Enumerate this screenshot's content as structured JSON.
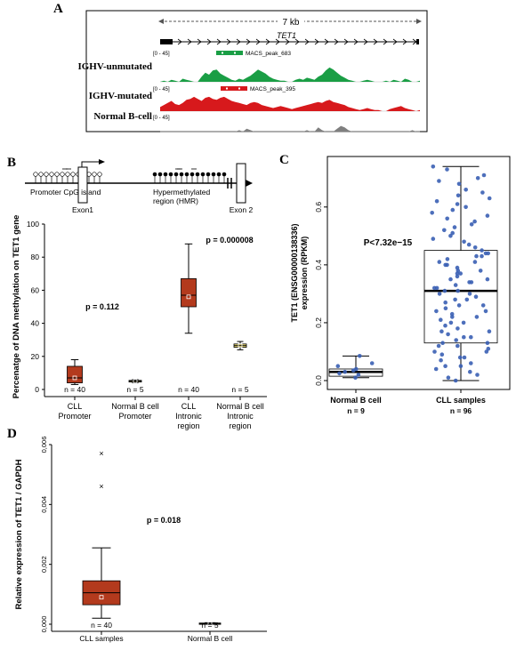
{
  "panels": {
    "a": "A",
    "b": "B",
    "c": "C",
    "d": "D"
  },
  "panel_a": {
    "scale_label": "7 kb",
    "gene_label": "TET1",
    "tracks": [
      {
        "name": "IGHV-unmutated",
        "range": "[0 - 45]",
        "peak": "MACS_peak_683",
        "color": "#1a9e45",
        "profile": [
          0,
          1,
          0,
          2,
          1,
          0,
          3,
          2,
          1,
          0,
          0,
          5,
          9,
          7,
          11,
          12,
          8,
          6,
          4,
          2,
          1,
          3,
          2,
          4,
          6,
          9,
          12,
          10,
          8,
          5,
          3,
          2,
          1,
          1,
          0,
          0,
          2,
          3,
          2,
          4,
          3,
          2,
          5,
          7,
          11,
          14,
          12,
          9,
          6,
          4,
          2,
          1,
          0,
          0,
          1,
          2,
          1,
          0,
          0,
          0,
          1,
          0,
          2,
          1,
          0,
          3,
          2,
          0,
          0,
          1
        ]
      },
      {
        "name": "IGHV-mutated",
        "range": "[0 - 45]",
        "peak": "MACS_peak_395",
        "color": "#d7191c",
        "profile": [
          4,
          6,
          8,
          10,
          7,
          6,
          8,
          11,
          12,
          14,
          12,
          10,
          13,
          14,
          12,
          11,
          13,
          14,
          12,
          10,
          9,
          8,
          7,
          6,
          8,
          9,
          8,
          6,
          5,
          4,
          3,
          4,
          5,
          4,
          3,
          2,
          3,
          4,
          5,
          6,
          7,
          8,
          9,
          8,
          10,
          11,
          9,
          8,
          7,
          6,
          4,
          3,
          2,
          1,
          2,
          3,
          2,
          1,
          1,
          0,
          0,
          2,
          3,
          4,
          5,
          3,
          2,
          1,
          0,
          1
        ]
      },
      {
        "name": "Normal B-cell",
        "range": "[0 - 45]",
        "peak": "",
        "color": "#7f7f7f",
        "profile": [
          0,
          0,
          0,
          0,
          0,
          0,
          0,
          0,
          0,
          0,
          0,
          0,
          0,
          0,
          0,
          0,
          0,
          0,
          0,
          0,
          0,
          1,
          0,
          2,
          1,
          0,
          0,
          0,
          0,
          0,
          0,
          0,
          0,
          0,
          0,
          0,
          0,
          0,
          0,
          1,
          0,
          0,
          3,
          1,
          0,
          0,
          0,
          2,
          4,
          3,
          1,
          0,
          0,
          0,
          0,
          0,
          0,
          0,
          0,
          0,
          0,
          0,
          0,
          0,
          0,
          0,
          0,
          1,
          0,
          0
        ]
      }
    ]
  },
  "panel_b": {
    "schematic": {
      "promoter": "Promoter CpG island",
      "hmr_line1": "Hypermethylated",
      "hmr_line2": "region (HMR)",
      "exon1": "Exon1",
      "exon2": "Exon 2"
    },
    "p_promoter": "p = 0.112",
    "p_intronic": "p = 0.000008"
  },
  "panel_c": {
    "p_label": "P<7.32e−15"
  },
  "chart_data": [
    {
      "type": "box",
      "panel": "B",
      "ylabel": "Percenatge of DNA methylation on TET1 gene",
      "ylim": [
        0,
        100
      ],
      "yticks": [
        "0",
        "20",
        "40",
        "60",
        "80",
        "100"
      ],
      "groups": [
        {
          "line1": "CLL",
          "line2": "Promoter",
          "n": "n = 40",
          "min": 3,
          "q1": 4,
          "median": 7,
          "q3": 14,
          "max": 18,
          "mean": 7,
          "color": "#b33a1d"
        },
        {
          "line1": "Normal B cell",
          "line2": "Promoter",
          "n": "n = 5",
          "min": 4,
          "q1": 4.5,
          "median": 5,
          "q3": 5.5,
          "max": 6,
          "mean": 5,
          "color": "#f2e27a"
        },
        {
          "line1": "CLL",
          "line2": "Intronic",
          "line3": "region",
          "n": "n = 40",
          "min": 34,
          "q1": 50,
          "median": 57,
          "q3": 67,
          "max": 88,
          "mean": 56,
          "color": "#b33a1d"
        },
        {
          "line1": "Normal B cell",
          "line2": "Intronic",
          "line3": "region",
          "n": "n = 5",
          "min": 24,
          "q1": 25.5,
          "median": 26.5,
          "q3": 27.5,
          "max": 29,
          "mean": 26.5,
          "color": "#f2e27a"
        }
      ]
    },
    {
      "type": "box",
      "panel": "C",
      "ylabel_line1": "TET1 (ENSG00000138336)",
      "ylabel_line2": "expression (RPKM)",
      "ylim": [
        0,
        0.75
      ],
      "yticks": [
        "0.0",
        "0.2",
        "0.4",
        "0.6"
      ],
      "groups": [
        {
          "label": "Normal B cell",
          "n": "n = 9",
          "min": 0.01,
          "q1": 0.015,
          "median": 0.03,
          "q3": 0.04,
          "max": 0.085,
          "points": [
            0.01,
            0.02,
            0.025,
            0.03,
            0.035,
            0.04,
            0.05,
            0.06,
            0.085
          ]
        },
        {
          "label": "CLL samples",
          "n": "n = 96",
          "min": 0.0,
          "q1": 0.13,
          "median": 0.31,
          "q3": 0.45,
          "max": 0.74,
          "points": [
            0.0,
            0.01,
            0.02,
            0.03,
            0.04,
            0.05,
            0.05,
            0.06,
            0.07,
            0.08,
            0.08,
            0.09,
            0.1,
            0.1,
            0.11,
            0.12,
            0.12,
            0.13,
            0.13,
            0.14,
            0.15,
            0.15,
            0.16,
            0.17,
            0.17,
            0.18,
            0.19,
            0.2,
            0.2,
            0.21,
            0.22,
            0.22,
            0.23,
            0.24,
            0.24,
            0.25,
            0.26,
            0.26,
            0.27,
            0.28,
            0.28,
            0.29,
            0.3,
            0.3,
            0.31,
            0.31,
            0.32,
            0.32,
            0.33,
            0.34,
            0.34,
            0.35,
            0.35,
            0.36,
            0.37,
            0.37,
            0.38,
            0.38,
            0.39,
            0.4,
            0.4,
            0.41,
            0.41,
            0.42,
            0.43,
            0.43,
            0.44,
            0.44,
            0.45,
            0.46,
            0.47,
            0.48,
            0.49,
            0.5,
            0.51,
            0.52,
            0.53,
            0.54,
            0.55,
            0.56,
            0.57,
            0.58,
            0.59,
            0.6,
            0.61,
            0.62,
            0.63,
            0.64,
            0.65,
            0.66,
            0.68,
            0.69,
            0.7,
            0.71,
            0.73,
            0.74
          ]
        }
      ]
    },
    {
      "type": "box",
      "panel": "D",
      "ylabel": "Relative expression of TET1 / GAPDH",
      "ylim": [
        0,
        0.006
      ],
      "yticks": [
        "0,000",
        "0,002",
        "0,004",
        "0,006"
      ],
      "p_label": "p = 0.018",
      "groups": [
        {
          "label": "CLL samples",
          "n": "n = 40",
          "min": 0.0002,
          "q1": 0.00065,
          "median": 0.00105,
          "q3": 0.00145,
          "max": 0.00255,
          "mean": 0.0009,
          "outliers": [
            0.0057,
            0.0046
          ],
          "color": "#b33a1d"
        },
        {
          "label": "Normal B cell",
          "n": "n = 5",
          "min": 0.0,
          "q1": 0.0,
          "median": 2e-05,
          "q3": 4e-05,
          "max": 5e-05,
          "mean": 2e-05,
          "outliers": [],
          "color": "#f2e27a"
        }
      ]
    }
  ]
}
